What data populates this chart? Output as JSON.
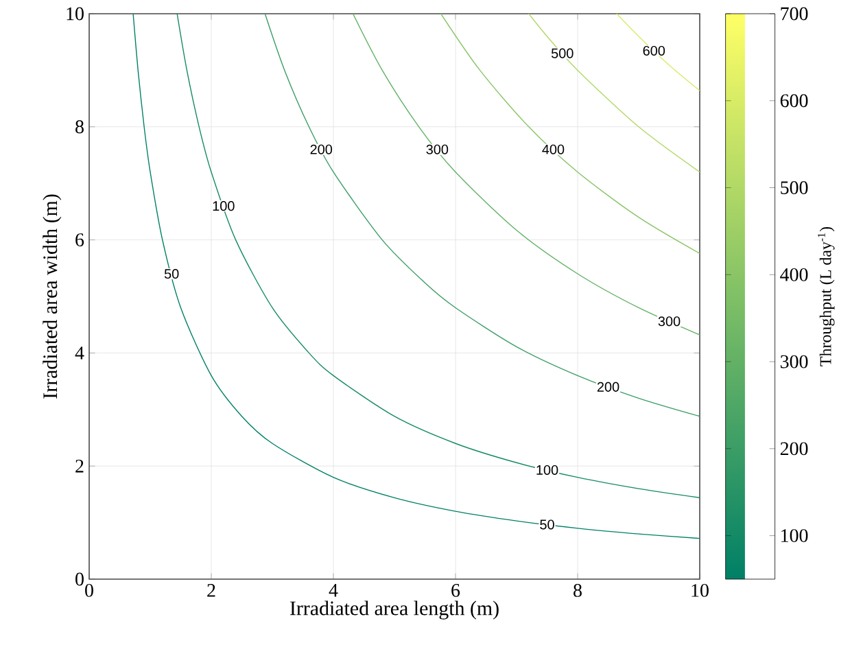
{
  "chart_data": {
    "type": "line",
    "xlabel": "Irradiated area length (m)",
    "ylabel": "Irradiated area width (m)",
    "clabel": "Throughput (L day$^{-1}$)",
    "xlim": [
      0,
      10
    ],
    "ylim": [
      0,
      10
    ],
    "xticks": [
      0,
      2,
      4,
      6,
      8,
      10
    ],
    "yticks": [
      0,
      2,
      4,
      6,
      8,
      10
    ],
    "clim": [
      50,
      700
    ],
    "cticks": [
      100,
      200,
      300,
      400,
      500,
      600,
      700
    ],
    "grid": true,
    "marker": "none",
    "line_style": "solid",
    "series": [
      {
        "name": "50",
        "color": "#008066",
        "x": [
          0.72,
          0.8,
          0.9,
          1.0,
          1.2,
          1.5,
          2,
          2.5,
          3,
          4,
          5,
          6,
          7,
          8,
          9,
          10
        ],
        "values": [
          10,
          9.0,
          8.0,
          7.2,
          6.0,
          4.8,
          3.6,
          2.88,
          2.4,
          1.8,
          1.44,
          1.2,
          1.03,
          0.9,
          0.8,
          0.72
        ]
      },
      {
        "name": "100",
        "color": "#148a66",
        "x": [
          1.44,
          1.6,
          1.8,
          2,
          2.4,
          3,
          3.6,
          4,
          5,
          6,
          7,
          8,
          9,
          10
        ],
        "values": [
          10,
          9.0,
          8.0,
          7.2,
          6.0,
          4.8,
          4.0,
          3.6,
          2.88,
          2.4,
          2.06,
          1.8,
          1.6,
          1.44
        ]
      },
      {
        "name": "200",
        "color": "#3b9d66",
        "x": [
          2.88,
          3.2,
          3.6,
          4,
          4.8,
          5.5,
          6,
          7,
          8,
          9,
          10
        ],
        "values": [
          10,
          9.0,
          8.0,
          7.2,
          6.0,
          5.24,
          4.8,
          4.11,
          3.6,
          3.2,
          2.88
        ]
      },
      {
        "name": "300",
        "color": "#62b166",
        "x": [
          4.32,
          4.8,
          5.4,
          6,
          7,
          8,
          9,
          10
        ],
        "values": [
          10,
          9.0,
          8.0,
          7.2,
          6.17,
          5.4,
          4.8,
          4.32
        ]
      },
      {
        "name": "400",
        "color": "#89c466",
        "x": [
          5.76,
          6.4,
          7.2,
          8,
          9,
          10
        ],
        "values": [
          10,
          9.0,
          8.0,
          7.2,
          6.4,
          5.76
        ]
      },
      {
        "name": "500",
        "color": "#b1d866",
        "x": [
          7.2,
          7.5,
          8,
          9,
          10
        ],
        "values": [
          10,
          9.6,
          9.0,
          8.0,
          7.2
        ]
      },
      {
        "name": "600",
        "color": "#d8eb66",
        "x": [
          8.64,
          9,
          9.5,
          10
        ],
        "values": [
          10,
          9.6,
          9.09,
          8.64
        ]
      }
    ]
  }
}
